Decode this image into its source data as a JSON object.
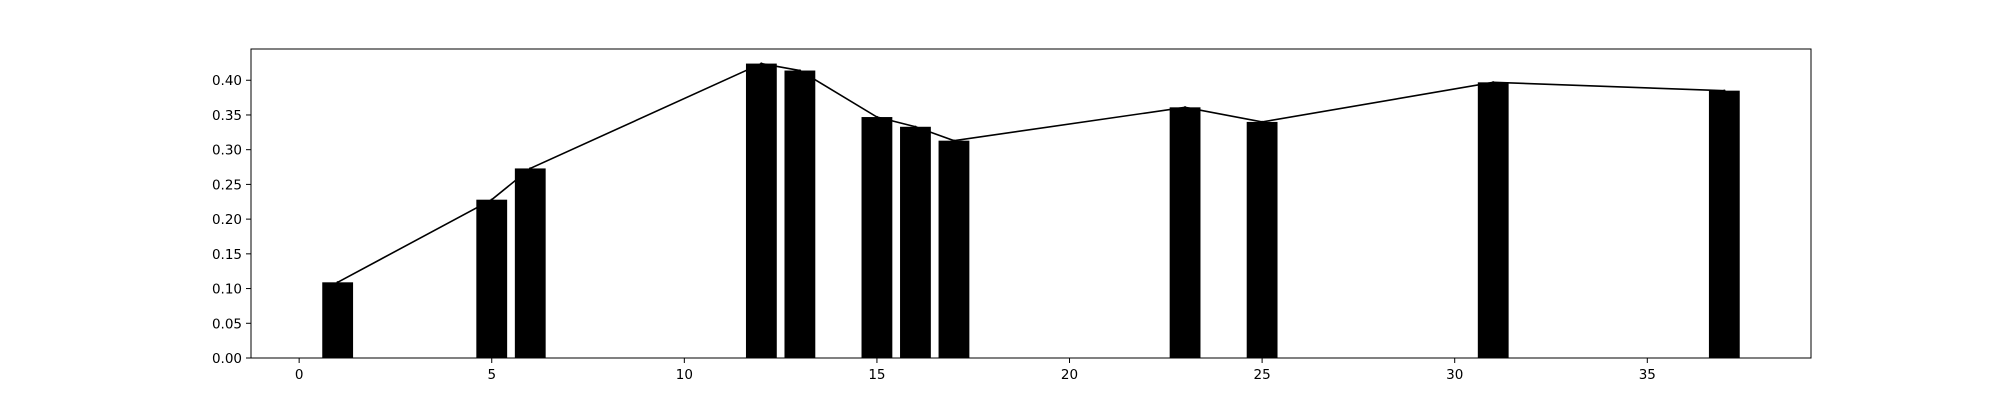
{
  "chart_data": {
    "type": "bar",
    "title": "",
    "xlabel": "",
    "ylabel": "",
    "xlim": [
      -1.25,
      39.25
    ],
    "ylim": [
      0,
      0.445
    ],
    "bar_width": 0.8,
    "x_ticks": [
      0,
      5,
      10,
      15,
      20,
      25,
      30,
      35
    ],
    "y_ticks": [
      0.0,
      0.05,
      0.1,
      0.15,
      0.2,
      0.25,
      0.3,
      0.35,
      0.4
    ],
    "grid": false,
    "legend": "none",
    "colors": {
      "bar": "#000000",
      "line": "#000000",
      "background": "#ffffff"
    },
    "series": [
      {
        "type": "bar",
        "x": [
          1,
          5,
          6,
          12,
          13,
          15,
          16,
          17,
          23,
          25,
          31,
          37
        ],
        "values": [
          0.109,
          0.228,
          0.273,
          0.424,
          0.414,
          0.347,
          0.333,
          0.313,
          0.361,
          0.34,
          0.397,
          0.385
        ]
      },
      {
        "type": "line",
        "x": [
          1,
          5,
          6,
          12,
          13,
          15,
          16,
          17,
          23,
          25,
          31,
          37
        ],
        "values": [
          0.109,
          0.228,
          0.273,
          0.424,
          0.414,
          0.347,
          0.333,
          0.313,
          0.361,
          0.34,
          0.397,
          0.385
        ]
      }
    ]
  }
}
